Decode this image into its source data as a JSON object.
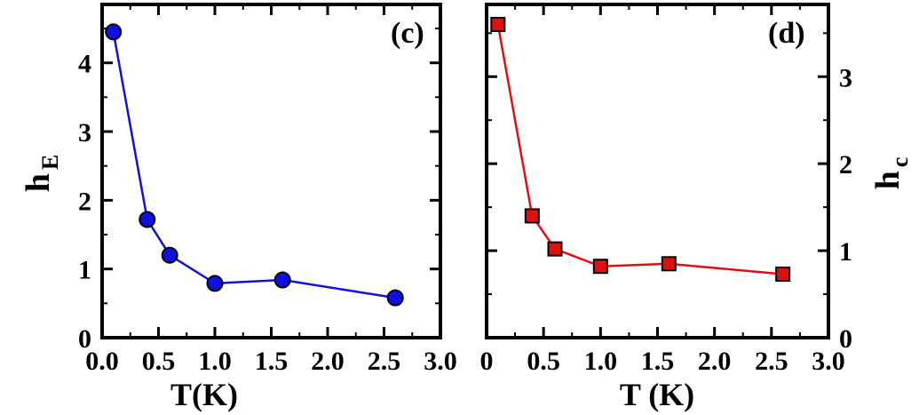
{
  "chart_data": [
    {
      "type": "line",
      "panel_label": "(c)",
      "xlabel": "T(K)",
      "ylabel_main": "h",
      "ylabel_sub": "E",
      "y_axis_side": "left",
      "xlim": [
        0.0,
        3.0
      ],
      "ylim": [
        0,
        4.85
      ],
      "x_ticks": [
        0.0,
        0.5,
        1.0,
        1.5,
        2.0,
        2.5,
        3.0
      ],
      "x_tick_labels": [
        "0.0",
        "0.5",
        "1.0",
        "1.5",
        "2.0",
        "2.5",
        "3.0"
      ],
      "y_ticks": [
        0,
        1,
        2,
        3,
        4
      ],
      "y_tick_labels": [
        "0",
        "1",
        "2",
        "3",
        "4"
      ],
      "series": [
        {
          "color": "#1010e0",
          "marker": "circle",
          "x": [
            0.1,
            0.4,
            0.6,
            1.0,
            1.6,
            2.6
          ],
          "y": [
            4.45,
            1.72,
            1.2,
            0.79,
            0.84,
            0.58
          ]
        }
      ]
    },
    {
      "type": "line",
      "panel_label": "(d)",
      "xlabel": "T (K)",
      "ylabel_main": "h",
      "ylabel_sub": "c",
      "y_axis_side": "right",
      "xlim": [
        0.0,
        3.0
      ],
      "ylim": [
        0,
        3.83
      ],
      "x_ticks": [
        0.0,
        0.5,
        1.0,
        1.5,
        2.0,
        2.5,
        3.0
      ],
      "x_tick_labels": [
        "0",
        "0.5",
        "1.0",
        "1.5",
        "2.0",
        "2.5",
        "3.0"
      ],
      "y_ticks": [
        0,
        1,
        2,
        3
      ],
      "y_tick_labels": [
        "0",
        "1",
        "2",
        "3"
      ],
      "series": [
        {
          "color": "#e01010",
          "marker": "square",
          "x": [
            0.1,
            0.4,
            0.6,
            1.0,
            1.6,
            2.6
          ],
          "y": [
            3.6,
            1.4,
            1.02,
            0.82,
            0.85,
            0.73
          ]
        }
      ]
    }
  ]
}
